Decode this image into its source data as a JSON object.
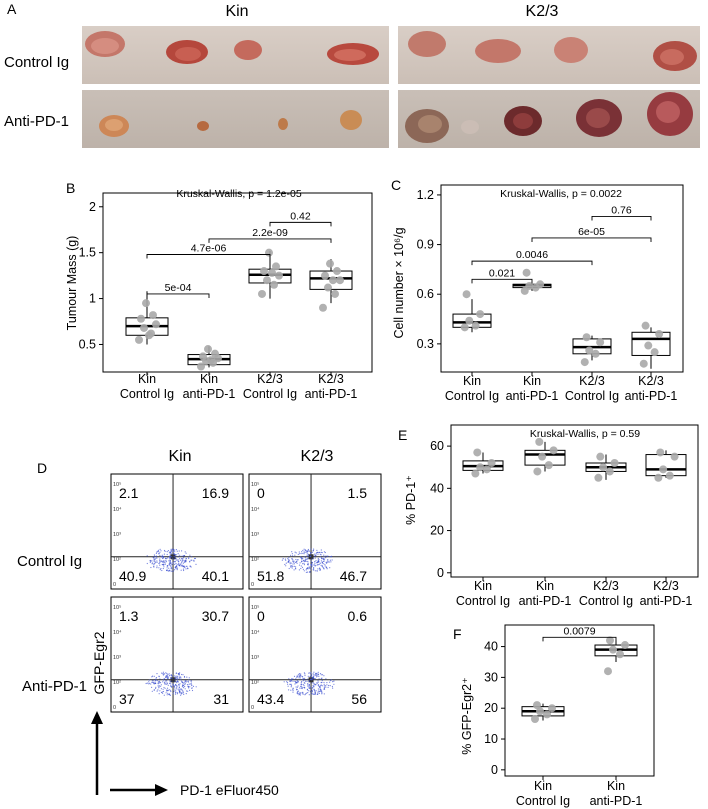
{
  "panel_letters": {
    "a": "A",
    "b": "B",
    "c": "C",
    "d": "D",
    "e": "E",
    "f": "F"
  },
  "panel_a": {
    "column_headers": [
      "Kin",
      "K2/3"
    ],
    "row_labels": [
      "Control Ig",
      "Anti-PD-1"
    ]
  },
  "common_categories": [
    {
      "line1": "Kin",
      "line2": "Control Ig"
    },
    {
      "line1": "Kin",
      "line2": "anti-PD-1"
    },
    {
      "line1": "K2/3",
      "line2": "Control Ig"
    },
    {
      "line1": "K2/3",
      "line2": "anti-PD-1"
    }
  ],
  "panel_d": {
    "column_headers": [
      "Kin",
      "K2/3"
    ],
    "row_labels": [
      "Control Ig",
      "Anti-PD-1"
    ],
    "ylabel": "GFP-Egr2",
    "xlabel": "PD-1 eFluor450",
    "plots": [
      {
        "name": "Kin Control Ig",
        "quadrants": {
          "ul": "2.1",
          "ur": "16.9",
          "ll": "40.9",
          "lr": "40.1"
        }
      },
      {
        "name": "K2/3 Control Ig",
        "quadrants": {
          "ul": "0",
          "ur": "1.5",
          "ll": "51.8",
          "lr": "46.7"
        }
      },
      {
        "name": "Kin Anti-PD-1",
        "quadrants": {
          "ul": "1.3",
          "ur": "30.7",
          "ll": "37",
          "lr": "31"
        }
      },
      {
        "name": "K2/3 Anti-PD-1",
        "quadrants": {
          "ul": "0",
          "ur": "0.6",
          "ll": "43.4",
          "lr": "56"
        }
      }
    ]
  },
  "chart_data": [
    {
      "panel": "B",
      "type": "box",
      "title": "Kruskal-Wallis, p = 1.2e-05",
      "ylabel": "Tumour Mass (g)",
      "ylim": [
        0.2,
        2.15
      ],
      "yticks": [
        "0.5",
        "1",
        "1.5",
        "2"
      ],
      "categories": [
        "Kin Control Ig",
        "Kin anti-PD-1",
        "K2/3 Control Ig",
        "K2/3 anti-PD-1"
      ],
      "boxes": [
        {
          "min": 0.5,
          "q1": 0.6,
          "median": 0.7,
          "q3": 0.79,
          "max": 1.08
        },
        {
          "min": 0.25,
          "q1": 0.28,
          "median": 0.34,
          "q3": 0.39,
          "max": 0.48
        },
        {
          "min": 1.0,
          "q1": 1.17,
          "median": 1.26,
          "q3": 1.32,
          "max": 1.52
        },
        {
          "min": 0.95,
          "q1": 1.1,
          "median": 1.22,
          "q3": 1.3,
          "max": 1.43
        }
      ],
      "points": [
        [
          0.55,
          0.62,
          0.68,
          0.72,
          0.78,
          0.82,
          0.95,
          0.6
        ],
        [
          0.26,
          0.3,
          0.32,
          0.35,
          0.37,
          0.4,
          0.45,
          0.33
        ],
        [
          1.05,
          1.15,
          1.2,
          1.25,
          1.3,
          1.35,
          1.5,
          1.28
        ],
        [
          0.9,
          1.05,
          1.12,
          1.2,
          1.25,
          1.3,
          1.38,
          1.2
        ]
      ],
      "comparisons": [
        {
          "from": 0,
          "to": 1,
          "label": "5e-04",
          "y": 1.05
        },
        {
          "from": 0,
          "to": 2,
          "label": "4.7e-06",
          "y": 1.48
        },
        {
          "from": 1,
          "to": 3,
          "label": "2.2e-09",
          "y": 1.65
        },
        {
          "from": 2,
          "to": 3,
          "label": "0.42",
          "y": 1.83
        }
      ]
    },
    {
      "panel": "C",
      "type": "box",
      "title": "Kruskal-Wallis, p = 0.0022",
      "ylabel": "Cell number × 10⁶/g",
      "ylim": [
        0.13,
        1.26
      ],
      "yticks": [
        "0.3",
        "0.6",
        "0.9",
        "1.2"
      ],
      "categories": [
        "Kin Control Ig",
        "Kin anti-PD-1",
        "K2/3 Control Ig",
        "K2/3 anti-PD-1"
      ],
      "boxes": [
        {
          "min": 0.37,
          "q1": 0.4,
          "median": 0.43,
          "q3": 0.48,
          "max": 0.57
        },
        {
          "min": 0.62,
          "q1": 0.64,
          "median": 0.655,
          "q3": 0.66,
          "max": 0.66
        },
        {
          "min": 0.2,
          "q1": 0.24,
          "median": 0.28,
          "q3": 0.33,
          "max": 0.35
        },
        {
          "min": 0.15,
          "q1": 0.23,
          "median": 0.33,
          "q3": 0.37,
          "max": 0.4
        }
      ],
      "points": [
        [
          0.4,
          0.41,
          0.44,
          0.48,
          0.6
        ],
        [
          0.62,
          0.64,
          0.65,
          0.66,
          0.73
        ],
        [
          0.19,
          0.24,
          0.26,
          0.31,
          0.34
        ],
        [
          0.18,
          0.25,
          0.29,
          0.36,
          0.41
        ]
      ],
      "comparisons": [
        {
          "from": 0,
          "to": 1,
          "label": "0.021",
          "y": 0.69
        },
        {
          "from": 0,
          "to": 2,
          "label": "0.0046",
          "y": 0.8
        },
        {
          "from": 1,
          "to": 3,
          "label": "6e-05",
          "y": 0.94
        },
        {
          "from": 2,
          "to": 3,
          "label": "0.76",
          "y": 1.07
        }
      ]
    },
    {
      "panel": "E",
      "type": "box",
      "title": "Kruskal-Wallis, p = 0.59",
      "ylabel": "% PD-1⁺",
      "ylim": [
        -2,
        70
      ],
      "yticks": [
        "0",
        "20",
        "40",
        "60"
      ],
      "categories": [
        "Kin Control Ig",
        "Kin anti-PD-1",
        "K2/3 Control Ig",
        "K2/3 anti-PD-1"
      ],
      "boxes": [
        {
          "min": 47,
          "q1": 48.5,
          "median": 50.5,
          "q3": 53,
          "max": 57
        },
        {
          "min": 48,
          "q1": 51,
          "median": 56,
          "q3": 58,
          "max": 62
        },
        {
          "min": 44,
          "q1": 48,
          "median": 50,
          "q3": 52,
          "max": 56
        },
        {
          "min": 45,
          "q1": 46,
          "median": 49,
          "q3": 56,
          "max": 58
        }
      ],
      "points": [
        [
          47,
          49,
          50,
          52,
          57
        ],
        [
          48,
          51,
          55,
          58,
          62
        ],
        [
          45,
          48,
          50,
          52,
          55
        ],
        [
          45,
          46,
          49,
          55,
          57
        ]
      ],
      "comparisons": []
    },
    {
      "panel": "F",
      "type": "box",
      "title": "",
      "ylabel": "% GFP-Egr2⁺",
      "ylim": [
        -2,
        47
      ],
      "yticks": [
        "0",
        "10",
        "20",
        "30",
        "40"
      ],
      "categories": [
        "Kin Control Ig",
        "Kin anti-PD-1"
      ],
      "boxes": [
        {
          "min": 16,
          "q1": 17.5,
          "median": 19,
          "q3": 20.5,
          "max": 21.5
        },
        {
          "min": 35,
          "q1": 37,
          "median": 39,
          "q3": 40.5,
          "max": 42
        }
      ],
      "points": [
        [
          16.5,
          18,
          19,
          20,
          21
        ],
        [
          32,
          37.5,
          39,
          40.5,
          42
        ]
      ],
      "comparisons": [
        {
          "from": 0,
          "to": 1,
          "label": "0.0079",
          "y": 43
        }
      ]
    }
  ]
}
